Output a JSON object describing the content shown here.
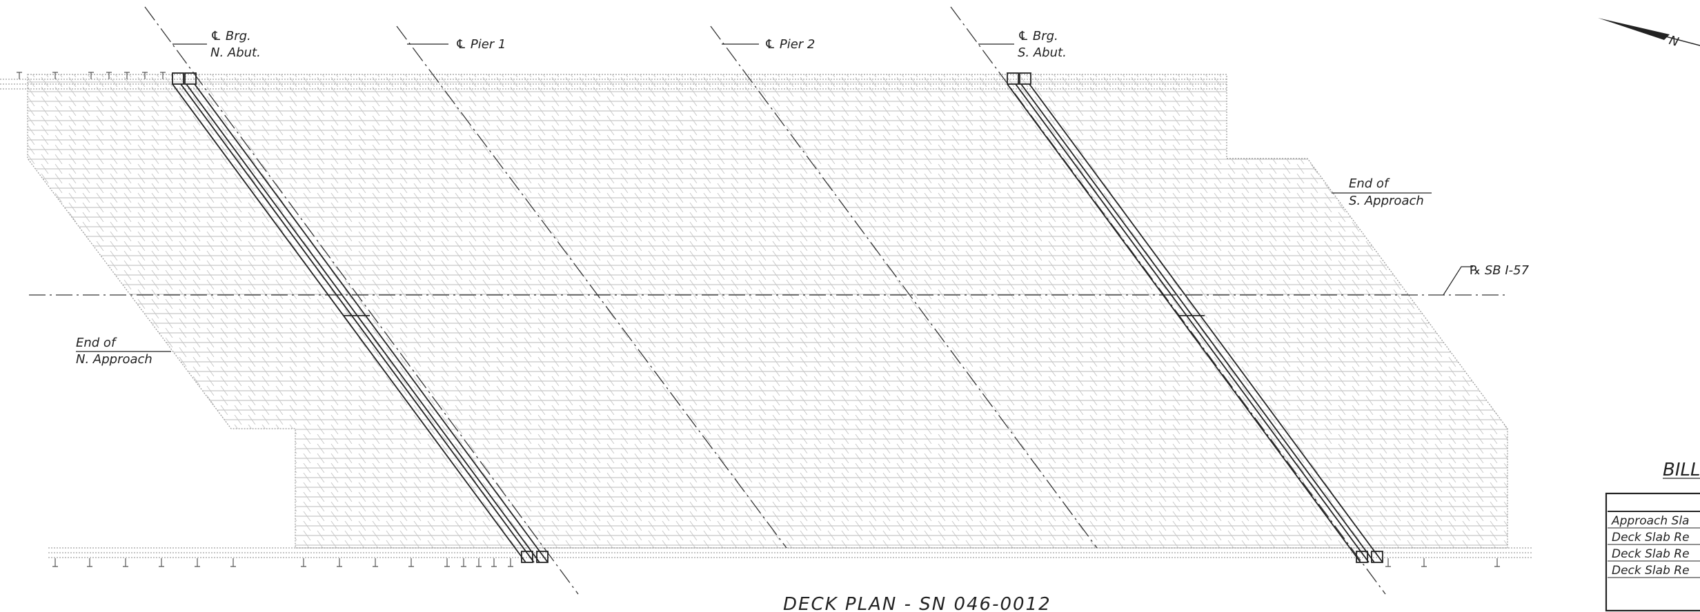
{
  "drawing": {
    "title": "DECK PLAN - SN 046-0012",
    "labels": {
      "brg_n_abut_1": "℄ Brg.",
      "brg_n_abut_2": "N. Abut.",
      "pier1": "℄ Pier 1",
      "pier2": "℄ Pier 2",
      "brg_s_abut_1": "℄ Brg.",
      "brg_s_abut_2": "S. Abut.",
      "end_s_approach_1": "End of",
      "end_s_approach_2": "S. Approach",
      "end_n_approach_1": "End of",
      "end_n_approach_2": "N. Approach",
      "baseline": "℞ SB I-57",
      "north_arrow": "N"
    },
    "bill": {
      "title": "BILL",
      "rows": [
        "Approach Sla",
        "Deck Slab Re",
        "Deck Slab Re",
        "Deck Slab Re"
      ]
    }
  }
}
